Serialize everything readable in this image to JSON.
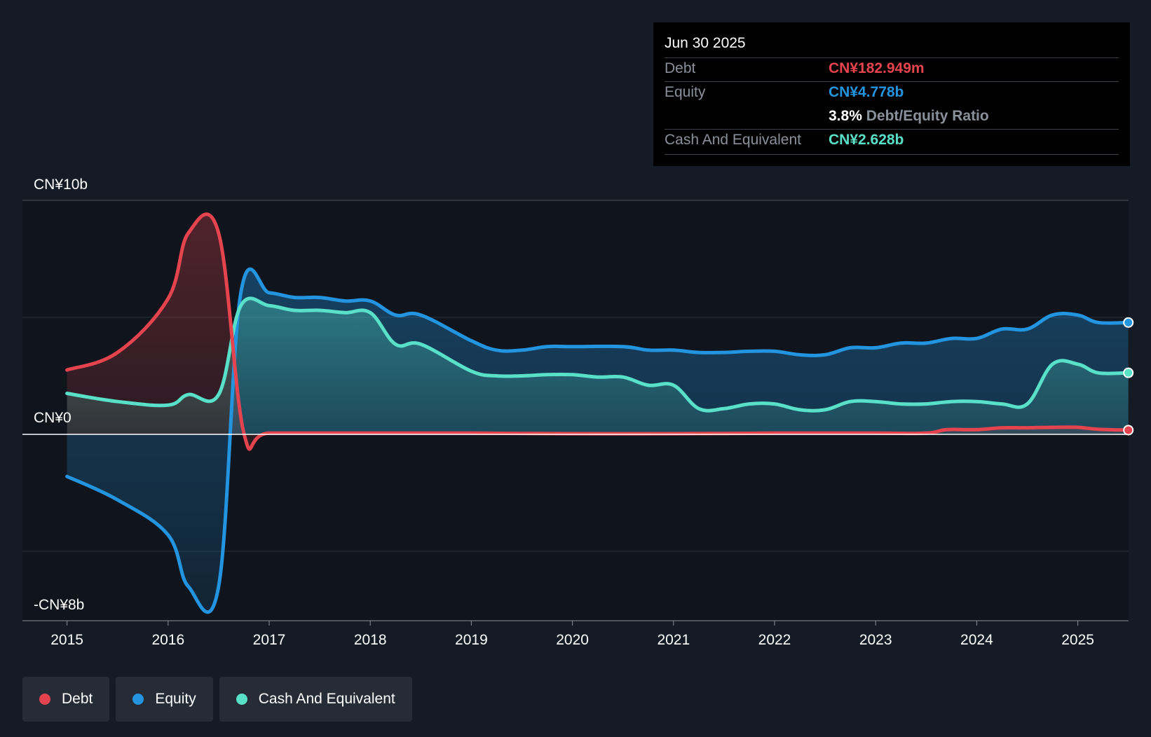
{
  "chart_data": {
    "type": "area",
    "title": "",
    "y_unit": "CN¥ billions",
    "ylim": [
      -8.0,
      10.0
    ],
    "y_tick_labels": [
      {
        "value": 10,
        "label": "CN¥10b"
      },
      {
        "value": 0,
        "label": "CN¥0"
      },
      {
        "value": -8,
        "label": "-CN¥8b"
      }
    ],
    "gridlines": [
      10,
      5,
      0,
      -5
    ],
    "xlim": [
      2014.55,
      2025.5
    ],
    "x_ticks": [
      2015,
      2016,
      2017,
      2018,
      2019,
      2020,
      2021,
      2022,
      2023,
      2024,
      2025
    ],
    "series": [
      {
        "name": "Debt",
        "color": "#e5434d",
        "points": [
          [
            2015.0,
            2.75
          ],
          [
            2015.5,
            3.5
          ],
          [
            2016.0,
            5.8
          ],
          [
            2016.2,
            8.6
          ],
          [
            2016.5,
            8.6
          ],
          [
            2016.75,
            0.05
          ],
          [
            2017.0,
            0.05
          ],
          [
            2018.0,
            0.05
          ],
          [
            2019.0,
            0.05
          ],
          [
            2020.0,
            0.03
          ],
          [
            2021.0,
            0.03
          ],
          [
            2022.0,
            0.05
          ],
          [
            2023.0,
            0.05
          ],
          [
            2023.5,
            0.05
          ],
          [
            2023.7,
            0.2
          ],
          [
            2024.0,
            0.2
          ],
          [
            2024.25,
            0.28
          ],
          [
            2024.5,
            0.28
          ],
          [
            2024.75,
            0.3
          ],
          [
            2025.0,
            0.3
          ],
          [
            2025.2,
            0.22
          ],
          [
            2025.5,
            0.18
          ]
        ]
      },
      {
        "name": "Equity",
        "color": "#2394df",
        "points": [
          [
            2015.0,
            -1.8
          ],
          [
            2015.5,
            -2.8
          ],
          [
            2016.0,
            -4.3
          ],
          [
            2016.2,
            -6.5
          ],
          [
            2016.5,
            -6.5
          ],
          [
            2016.72,
            6.05
          ],
          [
            2017.0,
            6.05
          ],
          [
            2017.25,
            5.85
          ],
          [
            2017.5,
            5.85
          ],
          [
            2017.75,
            5.7
          ],
          [
            2018.0,
            5.7
          ],
          [
            2018.25,
            5.1
          ],
          [
            2018.5,
            5.1
          ],
          [
            2019.0,
            4.0
          ],
          [
            2019.25,
            3.6
          ],
          [
            2019.5,
            3.6
          ],
          [
            2019.75,
            3.75
          ],
          [
            2020.0,
            3.75
          ],
          [
            2020.5,
            3.75
          ],
          [
            2020.75,
            3.6
          ],
          [
            2021.0,
            3.6
          ],
          [
            2021.25,
            3.5
          ],
          [
            2021.5,
            3.5
          ],
          [
            2021.75,
            3.55
          ],
          [
            2022.0,
            3.55
          ],
          [
            2022.25,
            3.4
          ],
          [
            2022.5,
            3.4
          ],
          [
            2022.75,
            3.7
          ],
          [
            2023.0,
            3.7
          ],
          [
            2023.25,
            3.9
          ],
          [
            2023.5,
            3.9
          ],
          [
            2023.75,
            4.1
          ],
          [
            2024.0,
            4.1
          ],
          [
            2024.25,
            4.5
          ],
          [
            2024.5,
            4.5
          ],
          [
            2024.75,
            5.1
          ],
          [
            2025.0,
            5.1
          ],
          [
            2025.2,
            4.78
          ],
          [
            2025.5,
            4.78
          ]
        ]
      },
      {
        "name": "Cash And Equivalent",
        "color": "#58e1c8",
        "points": [
          [
            2015.0,
            1.75
          ],
          [
            2015.5,
            1.4
          ],
          [
            2016.0,
            1.25
          ],
          [
            2016.2,
            1.7
          ],
          [
            2016.5,
            1.7
          ],
          [
            2016.72,
            5.5
          ],
          [
            2017.0,
            5.5
          ],
          [
            2017.25,
            5.3
          ],
          [
            2017.5,
            5.3
          ],
          [
            2017.75,
            5.2
          ],
          [
            2018.0,
            5.2
          ],
          [
            2018.25,
            3.85
          ],
          [
            2018.5,
            3.85
          ],
          [
            2019.0,
            2.7
          ],
          [
            2019.25,
            2.5
          ],
          [
            2019.5,
            2.5
          ],
          [
            2019.75,
            2.55
          ],
          [
            2020.0,
            2.55
          ],
          [
            2020.25,
            2.45
          ],
          [
            2020.5,
            2.45
          ],
          [
            2020.75,
            2.1
          ],
          [
            2021.0,
            2.1
          ],
          [
            2021.25,
            1.1
          ],
          [
            2021.5,
            1.1
          ],
          [
            2021.75,
            1.3
          ],
          [
            2022.0,
            1.3
          ],
          [
            2022.25,
            1.05
          ],
          [
            2022.5,
            1.05
          ],
          [
            2022.75,
            1.4
          ],
          [
            2023.0,
            1.4
          ],
          [
            2023.25,
            1.3
          ],
          [
            2023.5,
            1.3
          ],
          [
            2023.75,
            1.4
          ],
          [
            2024.0,
            1.4
          ],
          [
            2024.25,
            1.3
          ],
          [
            2024.5,
            1.3
          ],
          [
            2024.75,
            3.0
          ],
          [
            2025.0,
            3.0
          ],
          [
            2025.2,
            2.63
          ],
          [
            2025.5,
            2.63
          ]
        ]
      }
    ],
    "tooltip": {
      "date": "Jun 30 2025",
      "rows": [
        {
          "label": "Debt",
          "value": "CN¥182.949m",
          "color": "#e5434d"
        },
        {
          "label": "Equity",
          "value": "CN¥4.778b",
          "color": "#2394df"
        },
        {
          "label": "",
          "value": "3.8%",
          "suffix": "Debt/Equity Ratio",
          "color": "#ffffff"
        },
        {
          "label": "Cash And Equivalent",
          "value": "CN¥2.628b",
          "color": "#58e1c8"
        }
      ]
    },
    "legend": [
      {
        "label": "Debt",
        "color": "#e5434d"
      },
      {
        "label": "Equity",
        "color": "#2394df"
      },
      {
        "label": "Cash And Equivalent",
        "color": "#58e1c8"
      }
    ]
  }
}
